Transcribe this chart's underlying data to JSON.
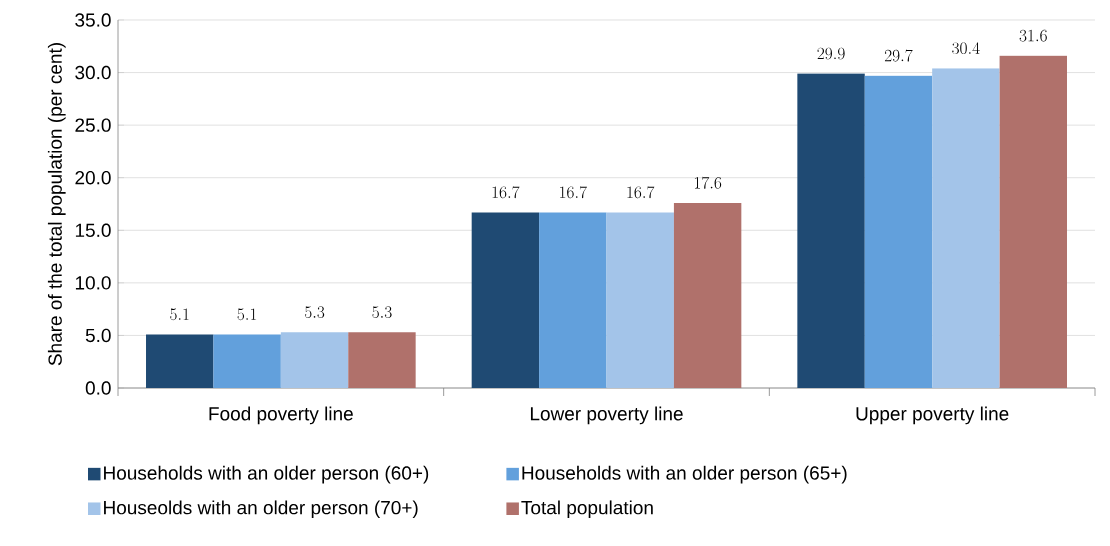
{
  "chart_data": {
    "type": "bar",
    "categories": [
      "Food poverty line",
      "Lower poverty line",
      "Upper poverty line"
    ],
    "series": [
      {
        "name": "Households with an older person (60+)",
        "color": "#1f4a73",
        "values": [
          5.1,
          16.7,
          29.9
        ]
      },
      {
        "name": "Households with an older person (65+)",
        "color": "#62a0dc",
        "values": [
          5.1,
          16.7,
          29.7
        ]
      },
      {
        "name": "Houseolds with an older person (70+)",
        "color": "#a3c4e9",
        "values": [
          5.3,
          16.7,
          30.4
        ]
      },
      {
        "name": "Total population",
        "color": "#b0716b",
        "values": [
          5.3,
          17.6,
          31.6
        ]
      }
    ],
    "ylabel": "Share of the total population (per cent)",
    "ylim": [
      0,
      35
    ],
    "yticks": [
      {
        "value": 0,
        "label": "0.0"
      },
      {
        "value": 5,
        "label": "5.0"
      },
      {
        "value": 10,
        "label": "10.0"
      },
      {
        "value": 15,
        "label": "15.0"
      },
      {
        "value": 20,
        "label": "20.0"
      },
      {
        "value": 25,
        "label": "25.0"
      },
      {
        "value": 30,
        "label": "30.0"
      },
      {
        "value": 35,
        "label": "35.0"
      }
    ],
    "grid": "y",
    "legend": "bottom",
    "data_labels": true
  }
}
